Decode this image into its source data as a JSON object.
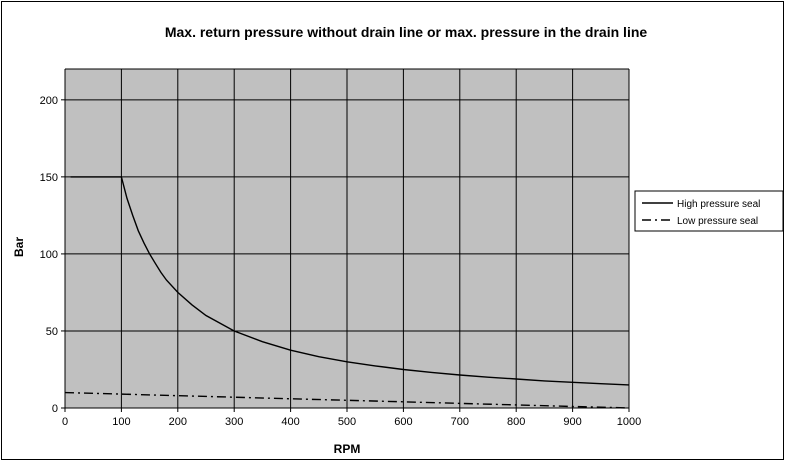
{
  "chart_data": {
    "type": "line",
    "title": "Max. return pressure without drain line or max. pressure in the drain line",
    "xlabel": "RPM",
    "ylabel": "Bar",
    "xlim": [
      0,
      1000
    ],
    "ylim": [
      0,
      220
    ],
    "xticks": [
      0,
      100,
      200,
      300,
      400,
      500,
      600,
      700,
      800,
      900,
      1000
    ],
    "yticks": [
      0,
      50,
      100,
      150,
      200
    ],
    "grid": true,
    "plot_background": "#c0c0c0",
    "legend_position": "right",
    "series": [
      {
        "name": "High pressure seal",
        "style": "solid",
        "color": "#000000",
        "x": [
          10,
          100,
          110,
          120,
          130,
          140,
          150,
          160,
          170,
          180,
          200,
          225,
          250,
          275,
          300,
          350,
          400,
          450,
          500,
          550,
          600,
          650,
          700,
          750,
          800,
          850,
          900,
          950,
          1000
        ],
        "y": [
          150,
          150,
          136,
          125,
          115,
          107,
          100,
          94,
          88,
          83,
          75,
          67,
          60,
          55,
          50,
          43,
          37.5,
          33.3,
          30,
          27.3,
          25,
          23.1,
          21.4,
          20,
          18.8,
          17.6,
          16.7,
          15.8,
          15
        ]
      },
      {
        "name": "Low pressure seal",
        "style": "dash-dot",
        "color": "#000000",
        "x": [
          0,
          100,
          200,
          300,
          400,
          500,
          600,
          700,
          800,
          900,
          950,
          1000
        ],
        "y": [
          10,
          9,
          8,
          7,
          6,
          5,
          4,
          3,
          2,
          1,
          0.5,
          0
        ]
      }
    ]
  }
}
